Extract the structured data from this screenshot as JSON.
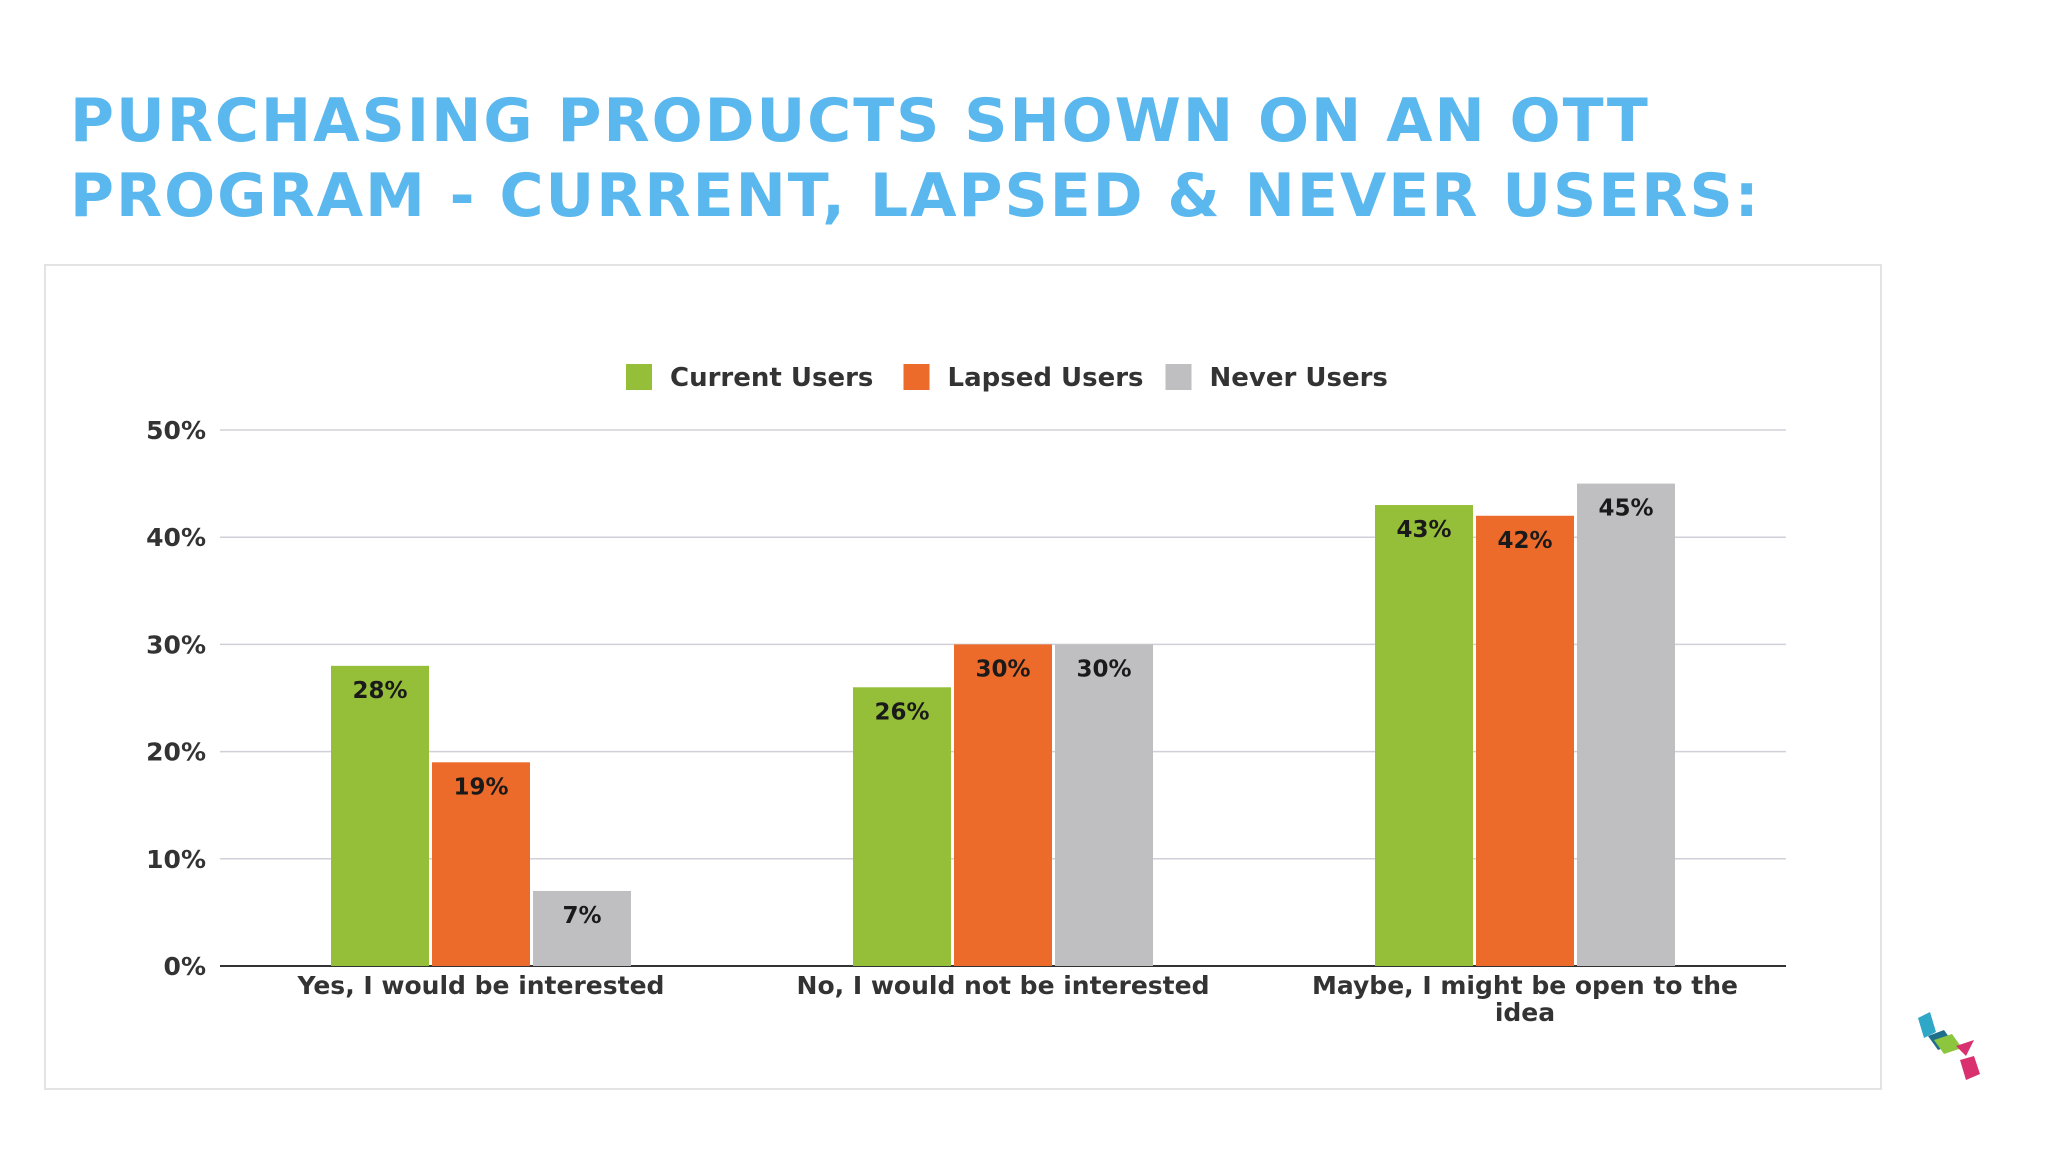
{
  "slide": {
    "title_line1": "PURCHASING PRODUCTS SHOWN ON AN OTT",
    "title_line2": "PROGRAM - CURRENT, LAPSED & NEVER USERS:",
    "title_color": "#5ab8ee"
  },
  "logo": {
    "icon": "cube-stack-logo-icon",
    "colors": [
      "#2fa7c6",
      "#8cc63f",
      "#d9306f",
      "#1e6f8c"
    ]
  },
  "chart_data": {
    "type": "bar",
    "categories": [
      "Yes, I would be interested",
      "No, I would not be interested",
      "Maybe, I might be open to the idea"
    ],
    "series": [
      {
        "name": "Current Users",
        "values": [
          28,
          26,
          43
        ],
        "labels": [
          "28%",
          "26%",
          "43%"
        ],
        "color": "#95bf39"
      },
      {
        "name": "Lapsed Users",
        "values": [
          19,
          30,
          42
        ],
        "labels": [
          "19%",
          "30%",
          "42%"
        ],
        "color": "#ec6a2a"
      },
      {
        "name": "Never Users",
        "values": [
          7,
          30,
          45
        ],
        "labels": [
          "7%",
          "30%",
          "45%"
        ],
        "color": "#bfbec0"
      }
    ],
    "yticks": [
      "0%",
      "10%",
      "20%",
      "30%",
      "40%",
      "50%"
    ],
    "ylim": [
      0,
      50
    ],
    "ystep": 10,
    "grid": true,
    "legend_position": "top-center",
    "xlabel": "",
    "ylabel": ""
  }
}
